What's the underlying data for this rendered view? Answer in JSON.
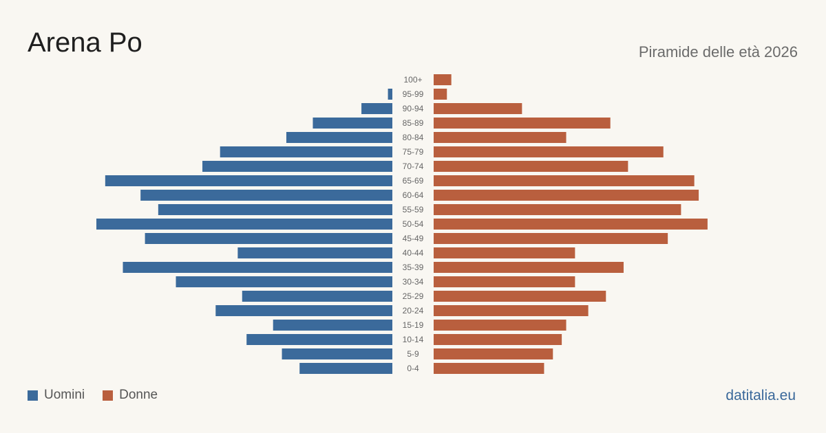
{
  "header": {
    "title": "Arena Po",
    "subtitle": "Piramide delle età 2026"
  },
  "legend": {
    "men_label": "Uomini",
    "women_label": "Donne"
  },
  "footer": {
    "brand": "datitalia.eu"
  },
  "colors": {
    "men": "#3b6a9b",
    "women": "#b95f3e",
    "background": "#f9f7f2",
    "tick_text": "#666666"
  },
  "chart_data": {
    "type": "bar",
    "orientation": "horizontal-pyramid",
    "title": "Arena Po",
    "subtitle": "Piramide delle età 2026",
    "categories": [
      "100+",
      "95-99",
      "90-94",
      "85-89",
      "80-84",
      "75-79",
      "70-74",
      "65-69",
      "60-64",
      "55-59",
      "50-54",
      "45-49",
      "40-44",
      "35-39",
      "30-34",
      "25-29",
      "20-24",
      "15-19",
      "10-14",
      "5-9",
      "0-4"
    ],
    "series": [
      {
        "name": "Uomini",
        "values": [
          0,
          1,
          7,
          18,
          24,
          39,
          43,
          65,
          57,
          53,
          67,
          56,
          35,
          61,
          49,
          34,
          40,
          27,
          33,
          25,
          21
        ]
      },
      {
        "name": "Donne",
        "values": [
          4,
          3,
          20,
          40,
          30,
          52,
          44,
          59,
          60,
          56,
          62,
          53,
          32,
          43,
          32,
          39,
          35,
          30,
          29,
          27,
          25
        ]
      }
    ],
    "xlim": [
      0,
      67
    ],
    "legend_position": "bottom-left",
    "grid": false
  }
}
